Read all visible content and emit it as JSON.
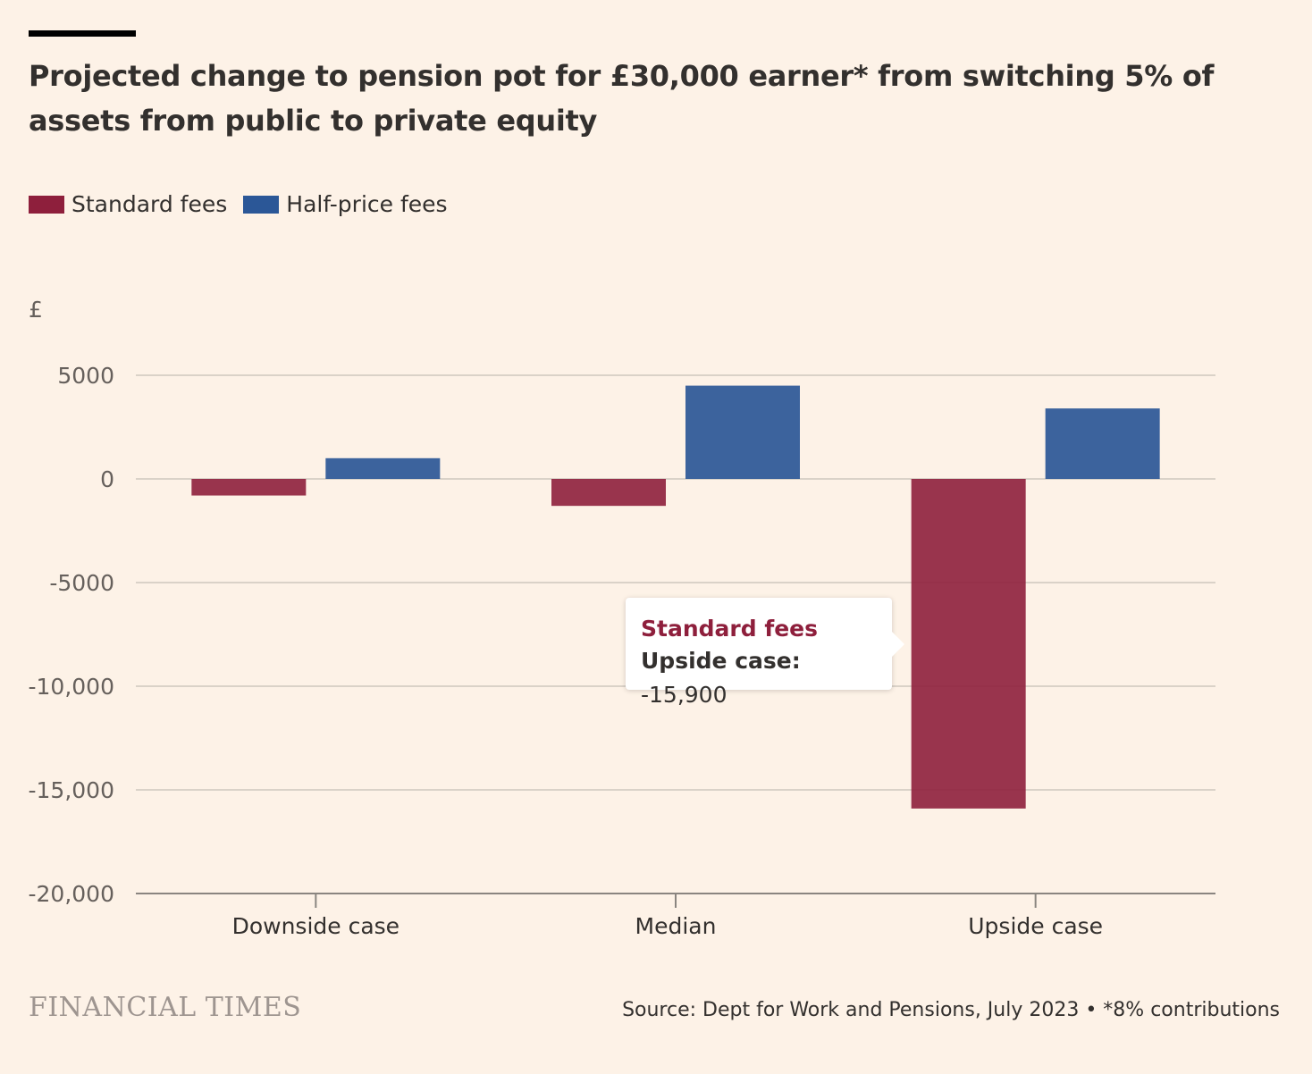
{
  "title": "Projected change to pension pot for £30,000 earner* from switching 5% of assets from public to private equity",
  "unit_label": "£",
  "legend": [
    {
      "label": "Standard fees",
      "color": "#8e1f3c"
    },
    {
      "label": "Half-price fees",
      "color": "#2b5797"
    }
  ],
  "tooltip": {
    "series": "Standard fees",
    "category": "Upside case:",
    "value": "-15,900"
  },
  "brand": "FINANCIAL TIMES",
  "source": "Source: Dept for Work and Pensions, July 2023 • *8% contributions",
  "chart_data": {
    "type": "bar",
    "categories": [
      "Downside case",
      "Median",
      "Upside case"
    ],
    "series": [
      {
        "name": "Standard fees",
        "values": [
          -800,
          -1300,
          -15900
        ],
        "color": "#8e1f3c"
      },
      {
        "name": "Half-price fees",
        "values": [
          1000,
          4500,
          3400
        ],
        "color": "#2b5797"
      }
    ],
    "ylim": [
      -20000,
      5000
    ],
    "yticks": [
      5000,
      0,
      -5000,
      -10000,
      -15000,
      -20000
    ],
    "ytick_labels": [
      "5000",
      "0",
      "-5000",
      "-10,000",
      "-15,000",
      "-20,000"
    ],
    "grid": true,
    "legend_position": "top-left"
  }
}
